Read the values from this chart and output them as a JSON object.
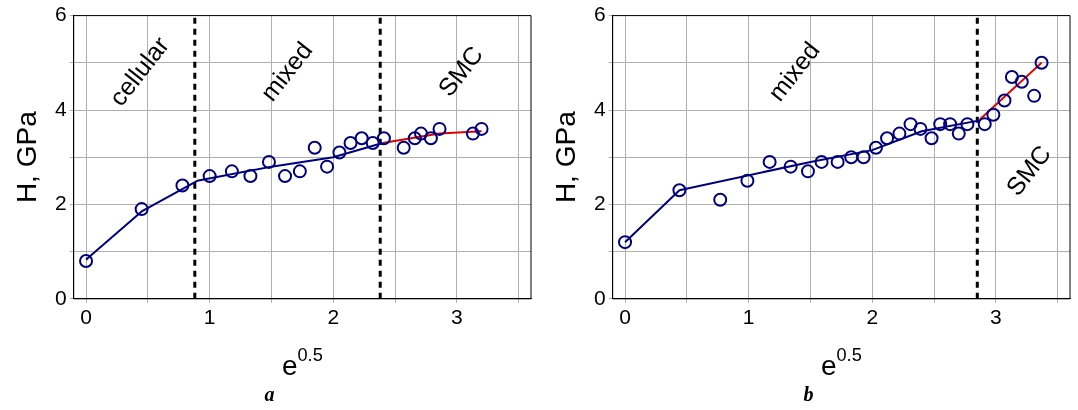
{
  "chart_data": [
    {
      "type": "scatter",
      "xlabel": "e$^{0.5}$",
      "ylabel": "H, GPa",
      "xlim": [
        -0.1,
        3.6
      ],
      "ylim": [
        0,
        6
      ],
      "xticks": [
        0,
        {
          "value": 0.5,
          "label": null
        },
        1,
        {
          "value": 1.5,
          "label": null
        },
        2,
        {
          "value": 2.5,
          "label": null
        },
        3,
        {
          "value": 3.5,
          "label": null
        }
      ],
      "yticks": [
        0,
        {
          "value": 1,
          "label": null
        },
        2,
        {
          "value": 3,
          "label": null
        },
        4,
        {
          "value": 5,
          "label": null
        },
        6
      ],
      "grid": true,
      "legend": false,
      "series": [
        {
          "type": "scatter",
          "marker": "circle",
          "color": "#00007f",
          "x": [
            0,
            0.45,
            0.78,
            1.0,
            1.18,
            1.33,
            1.48,
            1.61,
            1.73,
            1.85,
            1.95,
            2.05,
            2.14,
            2.23,
            2.32,
            2.41,
            2.57,
            2.66,
            2.71,
            2.79,
            2.86,
            3.13,
            3.2
          ],
          "values": [
            0.8,
            1.9,
            2.4,
            2.6,
            2.7,
            2.6,
            2.9,
            2.6,
            2.7,
            3.2,
            2.8,
            3.1,
            3.3,
            3.4,
            3.3,
            3.4,
            3.2,
            3.4,
            3.5,
            3.4,
            3.6,
            3.5,
            3.6
          ]
        },
        {
          "type": "line",
          "marker": "none",
          "color": "#00007f",
          "x": [
            0,
            0.45,
            0.9,
            1.5,
            2.0,
            2.4
          ],
          "values": [
            0.83,
            1.85,
            2.5,
            2.8,
            3.0,
            3.3
          ]
        },
        {
          "type": "line",
          "marker": "none",
          "color": "#e00000",
          "x": [
            2.4,
            2.86,
            3.2
          ],
          "values": [
            3.3,
            3.5,
            3.55
          ]
        }
      ],
      "ref_lines": [
        {
          "axis": "x",
          "value": 0.88,
          "color": "#000000",
          "line_style": "dashed"
        },
        {
          "axis": "x",
          "value": 2.38,
          "color": "#000000",
          "line_style": "dashed"
        }
      ],
      "annotations": [
        "cellular",
        "mixed",
        "SMC",
        "a"
      ]
    },
    {
      "type": "scatter",
      "xlabel": "e$^{0.5}$",
      "ylabel": "H, GPa",
      "xlim": [
        -0.1,
        3.6
      ],
      "ylim": [
        0,
        6
      ],
      "xticks": [
        0,
        {
          "value": 0.5,
          "label": null
        },
        1,
        {
          "value": 1.5,
          "label": null
        },
        2,
        {
          "value": 2.5,
          "label": null
        },
        3,
        {
          "value": 3.5,
          "label": null
        }
      ],
      "yticks": [
        0,
        {
          "value": 1,
          "label": null
        },
        2,
        {
          "value": 3,
          "label": null
        },
        4,
        {
          "value": 5,
          "label": null
        },
        6
      ],
      "grid": true,
      "legend": false,
      "series": [
        {
          "type": "scatter",
          "marker": "circle",
          "color": "#00007f",
          "x": [
            0,
            0.44,
            0.77,
            0.99,
            1.17,
            1.34,
            1.48,
            1.59,
            1.72,
            1.83,
            1.93,
            2.03,
            2.12,
            2.22,
            2.31,
            2.39,
            2.48,
            2.55,
            2.63,
            2.7,
            2.77,
            2.91,
            2.98,
            3.07,
            3.13,
            3.21,
            3.31,
            3.37
          ],
          "values": [
            1.2,
            2.3,
            2.1,
            2.5,
            2.9,
            2.8,
            2.7,
            2.9,
            2.9,
            3.0,
            3.0,
            3.2,
            3.4,
            3.5,
            3.7,
            3.6,
            3.4,
            3.7,
            3.7,
            3.5,
            3.7,
            3.7,
            3.9,
            4.2,
            4.7,
            4.6,
            4.3,
            5.0
          ]
        },
        {
          "type": "line",
          "marker": "none",
          "color": "#00007f",
          "x": [
            0,
            0.44,
            1.5,
            2.0,
            2.4,
            2.87
          ],
          "values": [
            1.2,
            2.3,
            2.9,
            3.15,
            3.55,
            3.78
          ]
        },
        {
          "type": "line",
          "marker": "none",
          "color": "#e00000",
          "x": [
            2.87,
            3.37
          ],
          "values": [
            3.8,
            5.0
          ]
        }
      ],
      "ref_lines": [
        {
          "axis": "x",
          "value": 2.85,
          "color": "#000000",
          "line_style": "dashed"
        }
      ],
      "annotations": [
        "mixed",
        "SMC",
        "b"
      ]
    }
  ]
}
